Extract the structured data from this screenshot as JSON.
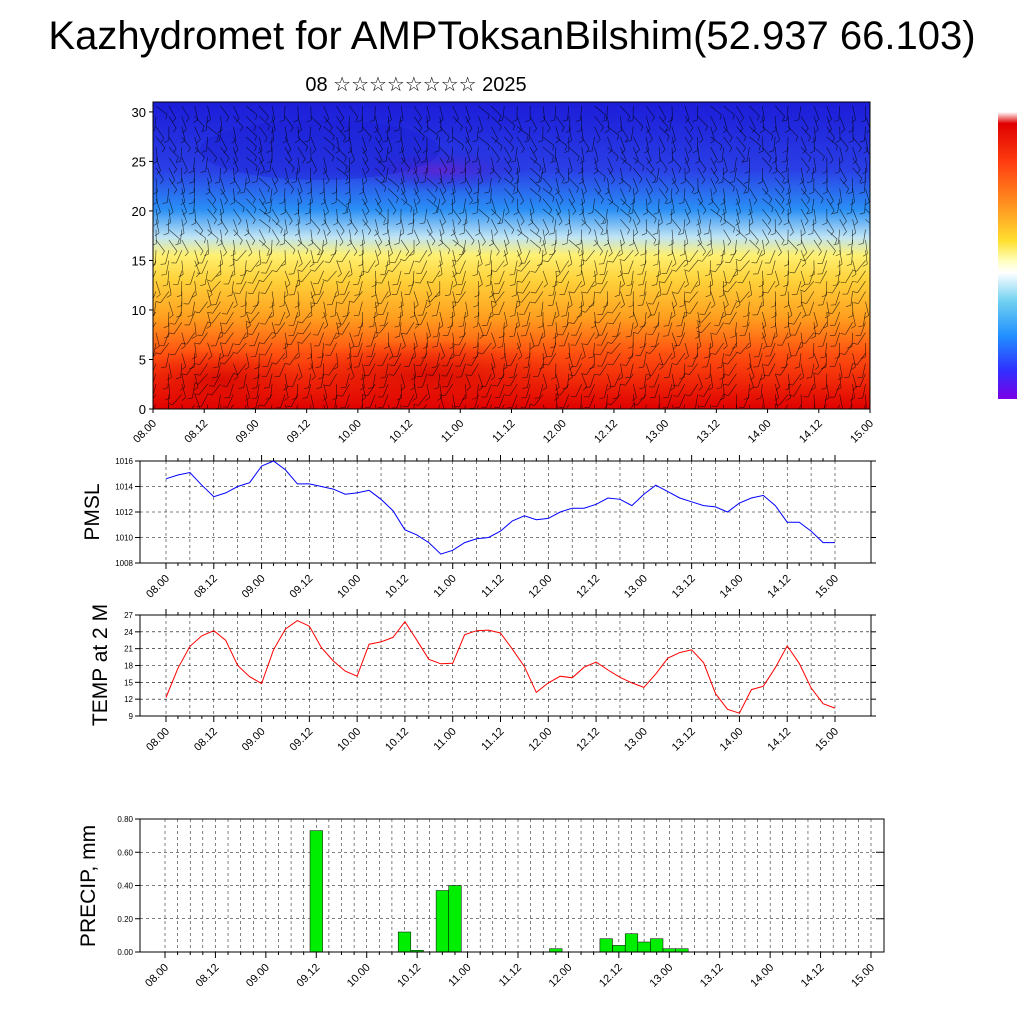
{
  "title": "Kazhydromet for AMPToksanBilshim(52.937 66.103)",
  "subtitle": "08 ☆☆☆☆☆☆☆☆ 2025",
  "time_labels": [
    "08.00",
    "08.12",
    "09.00",
    "09.12",
    "10.00",
    "10.12",
    "11.00",
    "11.12",
    "12.00",
    "12.12",
    "13.00",
    "13.12",
    "14.00",
    "14.12",
    "15.00"
  ],
  "chart_data": [
    {
      "type": "heatmap",
      "description_free": true,
      "xlabel": "",
      "ylabel": "",
      "x": [
        "08.00",
        "08.12",
        "09.00",
        "09.12",
        "10.00",
        "10.12",
        "11.00",
        "11.12",
        "12.00",
        "12.12",
        "13.00",
        "13.12",
        "14.00",
        "14.12",
        "15.00"
      ],
      "yticks": [
        "0",
        "5",
        "10",
        "15",
        "20",
        "25",
        "30"
      ],
      "ylim": [
        0,
        31
      ],
      "colorbar": [
        "#7a00e6",
        "#3a30ff",
        "#2090ff",
        "#7fd0f0",
        "#ffffff",
        "#ffe840",
        "#ffb020",
        "#ff6010",
        "#e00000"
      ],
      "overlay": "wind barbs"
    },
    {
      "type": "line",
      "ylabel": "PMSL",
      "yticks": [
        "1016",
        "1014",
        "1012",
        "1010",
        "1008"
      ],
      "ylim": [
        1008,
        1016
      ],
      "color": "#0000ff",
      "values": [
        1014.6,
        1014.9,
        1015.1,
        1014.1,
        1013.2,
        1013.5,
        1014.0,
        1014.3,
        1015.6,
        1016.0,
        1015.3,
        1014.2,
        1014.2,
        1014.0,
        1013.8,
        1013.4,
        1013.5,
        1013.7,
        1013.0,
        1012.1,
        1010.6,
        1010.2,
        1009.6,
        1008.7,
        1009.0,
        1009.6,
        1009.9,
        1010.0,
        1010.5,
        1011.3,
        1011.7,
        1011.4,
        1011.5,
        1012.0,
        1012.3,
        1012.3,
        1012.6,
        1013.1,
        1013.0,
        1012.5,
        1013.4,
        1014.1,
        1013.6,
        1013.1,
        1012.8,
        1012.5,
        1012.4,
        1012.0,
        1012.7,
        1013.1,
        1013.3,
        1012.5,
        1011.2,
        1011.2,
        1010.5,
        1009.6,
        1009.6
      ]
    },
    {
      "type": "line",
      "ylabel": "TEMP at 2 M",
      "yticks": [
        "27",
        "24",
        "21",
        "18",
        "15",
        "12",
        "9"
      ],
      "ylim": [
        9,
        27
      ],
      "color": "#ff0000",
      "values": [
        12.3,
        17.5,
        21.4,
        23.3,
        24.2,
        22.5,
        18.0,
        16.0,
        14.8,
        20.8,
        24.5,
        26.0,
        25.0,
        21.2,
        18.8,
        17.0,
        16.1,
        21.8,
        22.2,
        23.0,
        25.8,
        22.5,
        19.1,
        18.3,
        18.4,
        23.5,
        24.2,
        24.3,
        23.8,
        20.9,
        17.8,
        13.2,
        14.9,
        16.1,
        15.8,
        17.7,
        18.6,
        17.2,
        15.9,
        14.9,
        14.1,
        16.5,
        19.3,
        20.3,
        20.8,
        18.5,
        13.0,
        10.2,
        9.5,
        13.7,
        14.3,
        17.6,
        21.5,
        18.4,
        14.0,
        11.2,
        10.4
      ]
    },
    {
      "type": "bar",
      "ylabel": "PRECIP, mm",
      "yticks": [
        "0.80",
        "0.60",
        "0.40",
        "0.20",
        "0.00"
      ],
      "ylim": [
        0,
        0.8
      ],
      "color": "#00ee00",
      "values": [
        0,
        0,
        0,
        0,
        0,
        0,
        0,
        0,
        0,
        0,
        0,
        0,
        0.73,
        0,
        0,
        0,
        0,
        0,
        0,
        0.12,
        0.01,
        0,
        0.37,
        0.4,
        0,
        0,
        0,
        0,
        0,
        0,
        0,
        0.02,
        0,
        0,
        0,
        0.08,
        0.04,
        0.11,
        0.06,
        0.08,
        0.02,
        0.02,
        0,
        0,
        0,
        0,
        0,
        0,
        0,
        0,
        0,
        0,
        0,
        0,
        0,
        0,
        0
      ]
    }
  ]
}
